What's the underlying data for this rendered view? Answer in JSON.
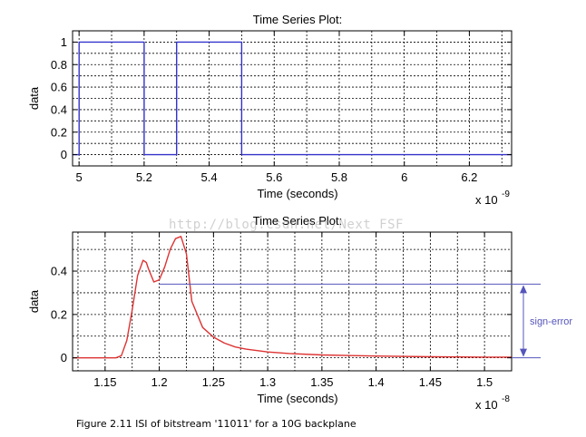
{
  "watermark": "http://blog.csdn.net/Next_FSF",
  "caption": "Figure 2.11 ISI of bitstream '11011' for a 10G backplane",
  "annotation": {
    "label": "sign-error",
    "color": "#5555bb",
    "from_y": 0.0,
    "to_y": 0.34
  },
  "chart_data": [
    {
      "type": "line",
      "title": "Time Series Plot:",
      "xlabel": "Time (seconds)",
      "ylabel": "data",
      "x_multiplier_label": "x 10",
      "x_multiplier_exponent": "-9",
      "xlim": [
        4.98,
        6.33
      ],
      "ylim": [
        -0.1,
        1.1
      ],
      "xticks": [
        5,
        5.2,
        5.4,
        5.6,
        5.8,
        6,
        6.2
      ],
      "xtick_labels": [
        "5",
        "5.2",
        "5.4",
        "5.6",
        "5.8",
        "6",
        "6.2"
      ],
      "yticks": [
        0,
        0.2,
        0.4,
        0.6,
        0.8,
        1
      ],
      "ytick_labels": [
        "0",
        "0.2",
        "0.4",
        "0.6",
        "0.8",
        "1"
      ],
      "grid": true,
      "color": "#3333cc",
      "series": [
        {
          "x": [
            4.98,
            5.0,
            5.0,
            5.2,
            5.2,
            5.3,
            5.3,
            5.5,
            5.5,
            6.33
          ],
          "y": [
            0,
            0,
            1,
            1,
            0,
            0,
            1,
            1,
            0,
            0
          ]
        }
      ]
    },
    {
      "type": "line",
      "title": "Time Series Plot:",
      "xlabel": "Time (seconds)",
      "ylabel": "data",
      "x_multiplier_label": "x 10",
      "x_multiplier_exponent": "-8",
      "xlim": [
        1.12,
        1.525
      ],
      "ylim": [
        -0.06,
        0.58
      ],
      "xticks": [
        1.15,
        1.2,
        1.25,
        1.3,
        1.35,
        1.4,
        1.45,
        1.5
      ],
      "xtick_labels": [
        "1.15",
        "1.2",
        "1.25",
        "1.3",
        "1.35",
        "1.4",
        "1.45",
        "1.5"
      ],
      "yticks": [
        0,
        0.2,
        0.4
      ],
      "ytick_labels": [
        "0",
        "0.2",
        "0.4"
      ],
      "grid": true,
      "color": "#dd3333",
      "series": [
        {
          "x": [
            1.12,
            1.16,
            1.165,
            1.17,
            1.175,
            1.18,
            1.185,
            1.188,
            1.19,
            1.195,
            1.2,
            1.205,
            1.21,
            1.215,
            1.22,
            1.225,
            1.23,
            1.24,
            1.25,
            1.26,
            1.27,
            1.28,
            1.3,
            1.32,
            1.35,
            1.4,
            1.45,
            1.5,
            1.525
          ],
          "y": [
            0,
            0,
            0.01,
            0.08,
            0.22,
            0.38,
            0.45,
            0.44,
            0.41,
            0.35,
            0.36,
            0.42,
            0.5,
            0.55,
            0.56,
            0.48,
            0.26,
            0.14,
            0.095,
            0.068,
            0.05,
            0.04,
            0.027,
            0.02,
            0.013,
            0.008,
            0.005,
            0.003,
            0.003
          ]
        }
      ]
    }
  ]
}
